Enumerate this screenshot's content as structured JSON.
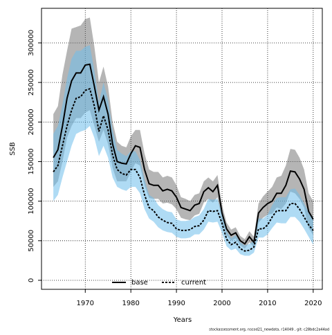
{
  "chart_data": {
    "type": "line",
    "xlabel": "Years",
    "ylabel": "SSB",
    "footnote": "stockassessment.org, nscod21_newdata, r14049 , git: c28bdc2a44ad",
    "x": [
      1963,
      1964,
      1965,
      1966,
      1967,
      1968,
      1969,
      1970,
      1971,
      1972,
      1973,
      1974,
      1975,
      1976,
      1977,
      1978,
      1979,
      1980,
      1981,
      1982,
      1983,
      1984,
      1985,
      1986,
      1987,
      1988,
      1989,
      1990,
      1991,
      1992,
      1993,
      1994,
      1995,
      1996,
      1997,
      1998,
      1999,
      2000,
      2001,
      2002,
      2003,
      2004,
      2005,
      2006,
      2007,
      2008,
      2009,
      2010,
      2011,
      2012,
      2013,
      2014,
      2015,
      2016,
      2017,
      2018,
      2019,
      2020
    ],
    "series": [
      {
        "name": "base",
        "color": "#000000",
        "band_color": "rgba(90,90,90,0.45)",
        "values": [
          155000,
          165000,
          195000,
          230000,
          252000,
          262000,
          262000,
          272000,
          273000,
          245000,
          215000,
          232000,
          210000,
          172000,
          150000,
          148000,
          147000,
          160000,
          170000,
          168000,
          140000,
          122000,
          120000,
          120000,
          113000,
          115000,
          113000,
          105000,
          92000,
          90000,
          88000,
          95000,
          97000,
          112000,
          117000,
          112000,
          120000,
          85000,
          65000,
          57000,
          60000,
          50000,
          46000,
          55000,
          48000,
          85000,
          92000,
          97000,
          100000,
          110000,
          110000,
          120000,
          138000,
          137000,
          128000,
          115000,
          87000,
          77000
        ],
        "upper": [
          210000,
          220000,
          260000,
          290000,
          318000,
          320000,
          322000,
          330000,
          332000,
          295000,
          250000,
          270000,
          245000,
          200000,
          175000,
          170000,
          168000,
          182000,
          190000,
          190000,
          160000,
          140000,
          137000,
          137000,
          130000,
          132000,
          130000,
          120000,
          105000,
          103000,
          100000,
          108000,
          110000,
          125000,
          130000,
          125000,
          133000,
          95000,
          73000,
          64000,
          67000,
          56000,
          52000,
          62000,
          55000,
          97000,
          106000,
          112000,
          118000,
          130000,
          132000,
          145000,
          166000,
          165000,
          155000,
          140000,
          110000,
          100000
        ],
        "lower": [
          118000,
          125000,
          150000,
          180000,
          195000,
          205000,
          205000,
          212000,
          215000,
          195000,
          175000,
          190000,
          172000,
          142000,
          125000,
          125000,
          125000,
          137000,
          148000,
          145000,
          120000,
          104000,
          103000,
          103000,
          97000,
          98000,
          96000,
          90000,
          79000,
          77000,
          76000,
          82000,
          84000,
          98000,
          103000,
          98000,
          105000,
          75000,
          57000,
          50000,
          53000,
          44000,
          40000,
          48000,
          42000,
          73000,
          79000,
          83000,
          84000,
          92000,
          90000,
          97000,
          112000,
          110000,
          103000,
          92000,
          66000,
          57000
        ]
      },
      {
        "name": "current",
        "color": "#000000",
        "band_color": "rgba(110,190,235,0.55)",
        "dashed": true,
        "values": [
          137000,
          145000,
          170000,
          195000,
          215000,
          230000,
          232000,
          240000,
          242000,
          220000,
          188000,
          208000,
          190000,
          158000,
          140000,
          135000,
          133000,
          140000,
          140000,
          130000,
          108000,
          92000,
          88000,
          80000,
          76000,
          73000,
          72000,
          65000,
          63000,
          63000,
          64000,
          68000,
          69000,
          76000,
          88000,
          87000,
          88000,
          72000,
          52000,
          45000,
          48000,
          40000,
          37000,
          38000,
          42000,
          65000,
          65000,
          70000,
          80000,
          88000,
          88000,
          88000,
          97000,
          97000,
          90000,
          80000,
          70000,
          63000
        ],
        "upper": [
          185000,
          195000,
          222000,
          255000,
          280000,
          290000,
          290000,
          295000,
          297000,
          265000,
          225000,
          250000,
          228000,
          190000,
          165000,
          160000,
          157000,
          163000,
          163000,
          152000,
          127000,
          108000,
          104000,
          95000,
          90000,
          87000,
          86000,
          77000,
          75000,
          75000,
          76000,
          80000,
          82000,
          90000,
          103000,
          102000,
          103000,
          85000,
          62000,
          53000,
          57000,
          48000,
          44000,
          46000,
          50000,
          78000,
          78000,
          83000,
          95000,
          104000,
          105000,
          105000,
          115000,
          116000,
          108000,
          97000,
          86000,
          80000
        ],
        "lower": [
          100000,
          108000,
          130000,
          150000,
          170000,
          185000,
          188000,
          190000,
          195000,
          180000,
          157000,
          170000,
          155000,
          130000,
          118000,
          115000,
          113000,
          118000,
          118000,
          110000,
          90000,
          78000,
          74000,
          67000,
          63000,
          61000,
          60000,
          55000,
          53000,
          53000,
          54000,
          58000,
          58000,
          64000,
          74000,
          73000,
          74000,
          60000,
          43000,
          38000,
          40000,
          33000,
          31000,
          31000,
          35000,
          54000,
          54000,
          58000,
          66000,
          73000,
          72000,
          72000,
          80000,
          80000,
          74000,
          65000,
          55000,
          45000
        ]
      }
    ],
    "xlim": [
      1960.4,
      2022
    ],
    "ylim": [
      -11400,
      343700
    ],
    "xticks": [
      1970,
      1980,
      1990,
      2000,
      2010,
      2020
    ],
    "yticks": [
      0,
      50000,
      100000,
      150000,
      200000,
      250000,
      300000
    ],
    "grid": true,
    "legend": "bottom"
  }
}
